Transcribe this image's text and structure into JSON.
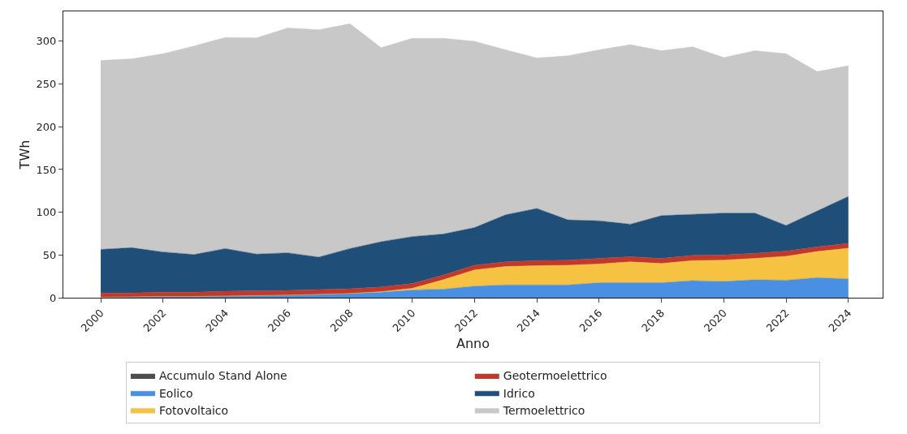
{
  "chart_data": {
    "type": "area",
    "stacked": true,
    "xlabel": "Anno",
    "ylabel": "TWh",
    "x": [
      2000,
      2001,
      2002,
      2003,
      2004,
      2005,
      2006,
      2007,
      2008,
      2009,
      2010,
      2011,
      2012,
      2013,
      2014,
      2015,
      2016,
      2017,
      2018,
      2019,
      2020,
      2021,
      2022,
      2023,
      2024
    ],
    "series": [
      {
        "name": "Accumulo Stand Alone",
        "color": "#4d4d4d",
        "values": [
          null,
          null,
          null,
          null,
          null,
          null,
          null,
          null,
          null,
          null,
          null,
          null,
          null,
          null,
          null,
          null,
          null,
          null,
          null,
          null,
          null,
          null,
          null,
          null,
          null
        ]
      },
      {
        "name": "Eolico",
        "color": "#4a90e2",
        "values": [
          0.5,
          1,
          1.5,
          1.5,
          2,
          2.5,
          3,
          4,
          5,
          6.5,
          9,
          10,
          13.5,
          15,
          15,
          15,
          17.5,
          17.5,
          17.5,
          20,
          19,
          21,
          20.5,
          23.5,
          22
        ]
      },
      {
        "name": "Fotovoltaico",
        "color": "#f5c242",
        "values": [
          0,
          0,
          0,
          0,
          0,
          0,
          0,
          0,
          0,
          0.5,
          2,
          11,
          19,
          21.5,
          22.5,
          23,
          22,
          24.5,
          22.5,
          23.5,
          25,
          25,
          28,
          30.5,
          36
        ]
      },
      {
        "name": "Geotermoelettrico",
        "color": "#c0392b",
        "values": [
          5,
          4.5,
          5,
          5,
          5.5,
          5.5,
          5.5,
          5.5,
          5.5,
          5.5,
          5.5,
          5.5,
          5.5,
          5.5,
          6,
          6,
          6.5,
          6,
          6,
          6,
          6,
          6,
          6,
          5.5,
          5.5
        ]
      },
      {
        "name": "Idrico",
        "color": "#1f4e79",
        "values": [
          51,
          53,
          47,
          44,
          50,
          43,
          44,
          38,
          47,
          53,
          55,
          48,
          44,
          55,
          61,
          47,
          44,
          38,
          50,
          48,
          49,
          47,
          30,
          42,
          55
        ]
      },
      {
        "name": "Termoelettrico",
        "color": "#c8c8c8",
        "values": [
          221,
          221,
          232,
          244,
          247,
          253,
          263,
          266,
          263,
          227,
          232,
          229,
          218,
          193,
          176,
          192,
          200,
          210,
          193,
          196,
          182,
          190,
          201,
          163,
          153
        ]
      }
    ],
    "xlim": [
      1998.8,
      2025.1
    ],
    "xticks": [
      2000,
      2002,
      2004,
      2006,
      2008,
      2010,
      2012,
      2014,
      2016,
      2018,
      2020,
      2022,
      2024
    ],
    "ylim": [
      0,
      335
    ],
    "yticks": [
      0,
      50,
      100,
      150,
      200,
      250,
      300
    ],
    "grid": false,
    "legend": "bottom"
  }
}
